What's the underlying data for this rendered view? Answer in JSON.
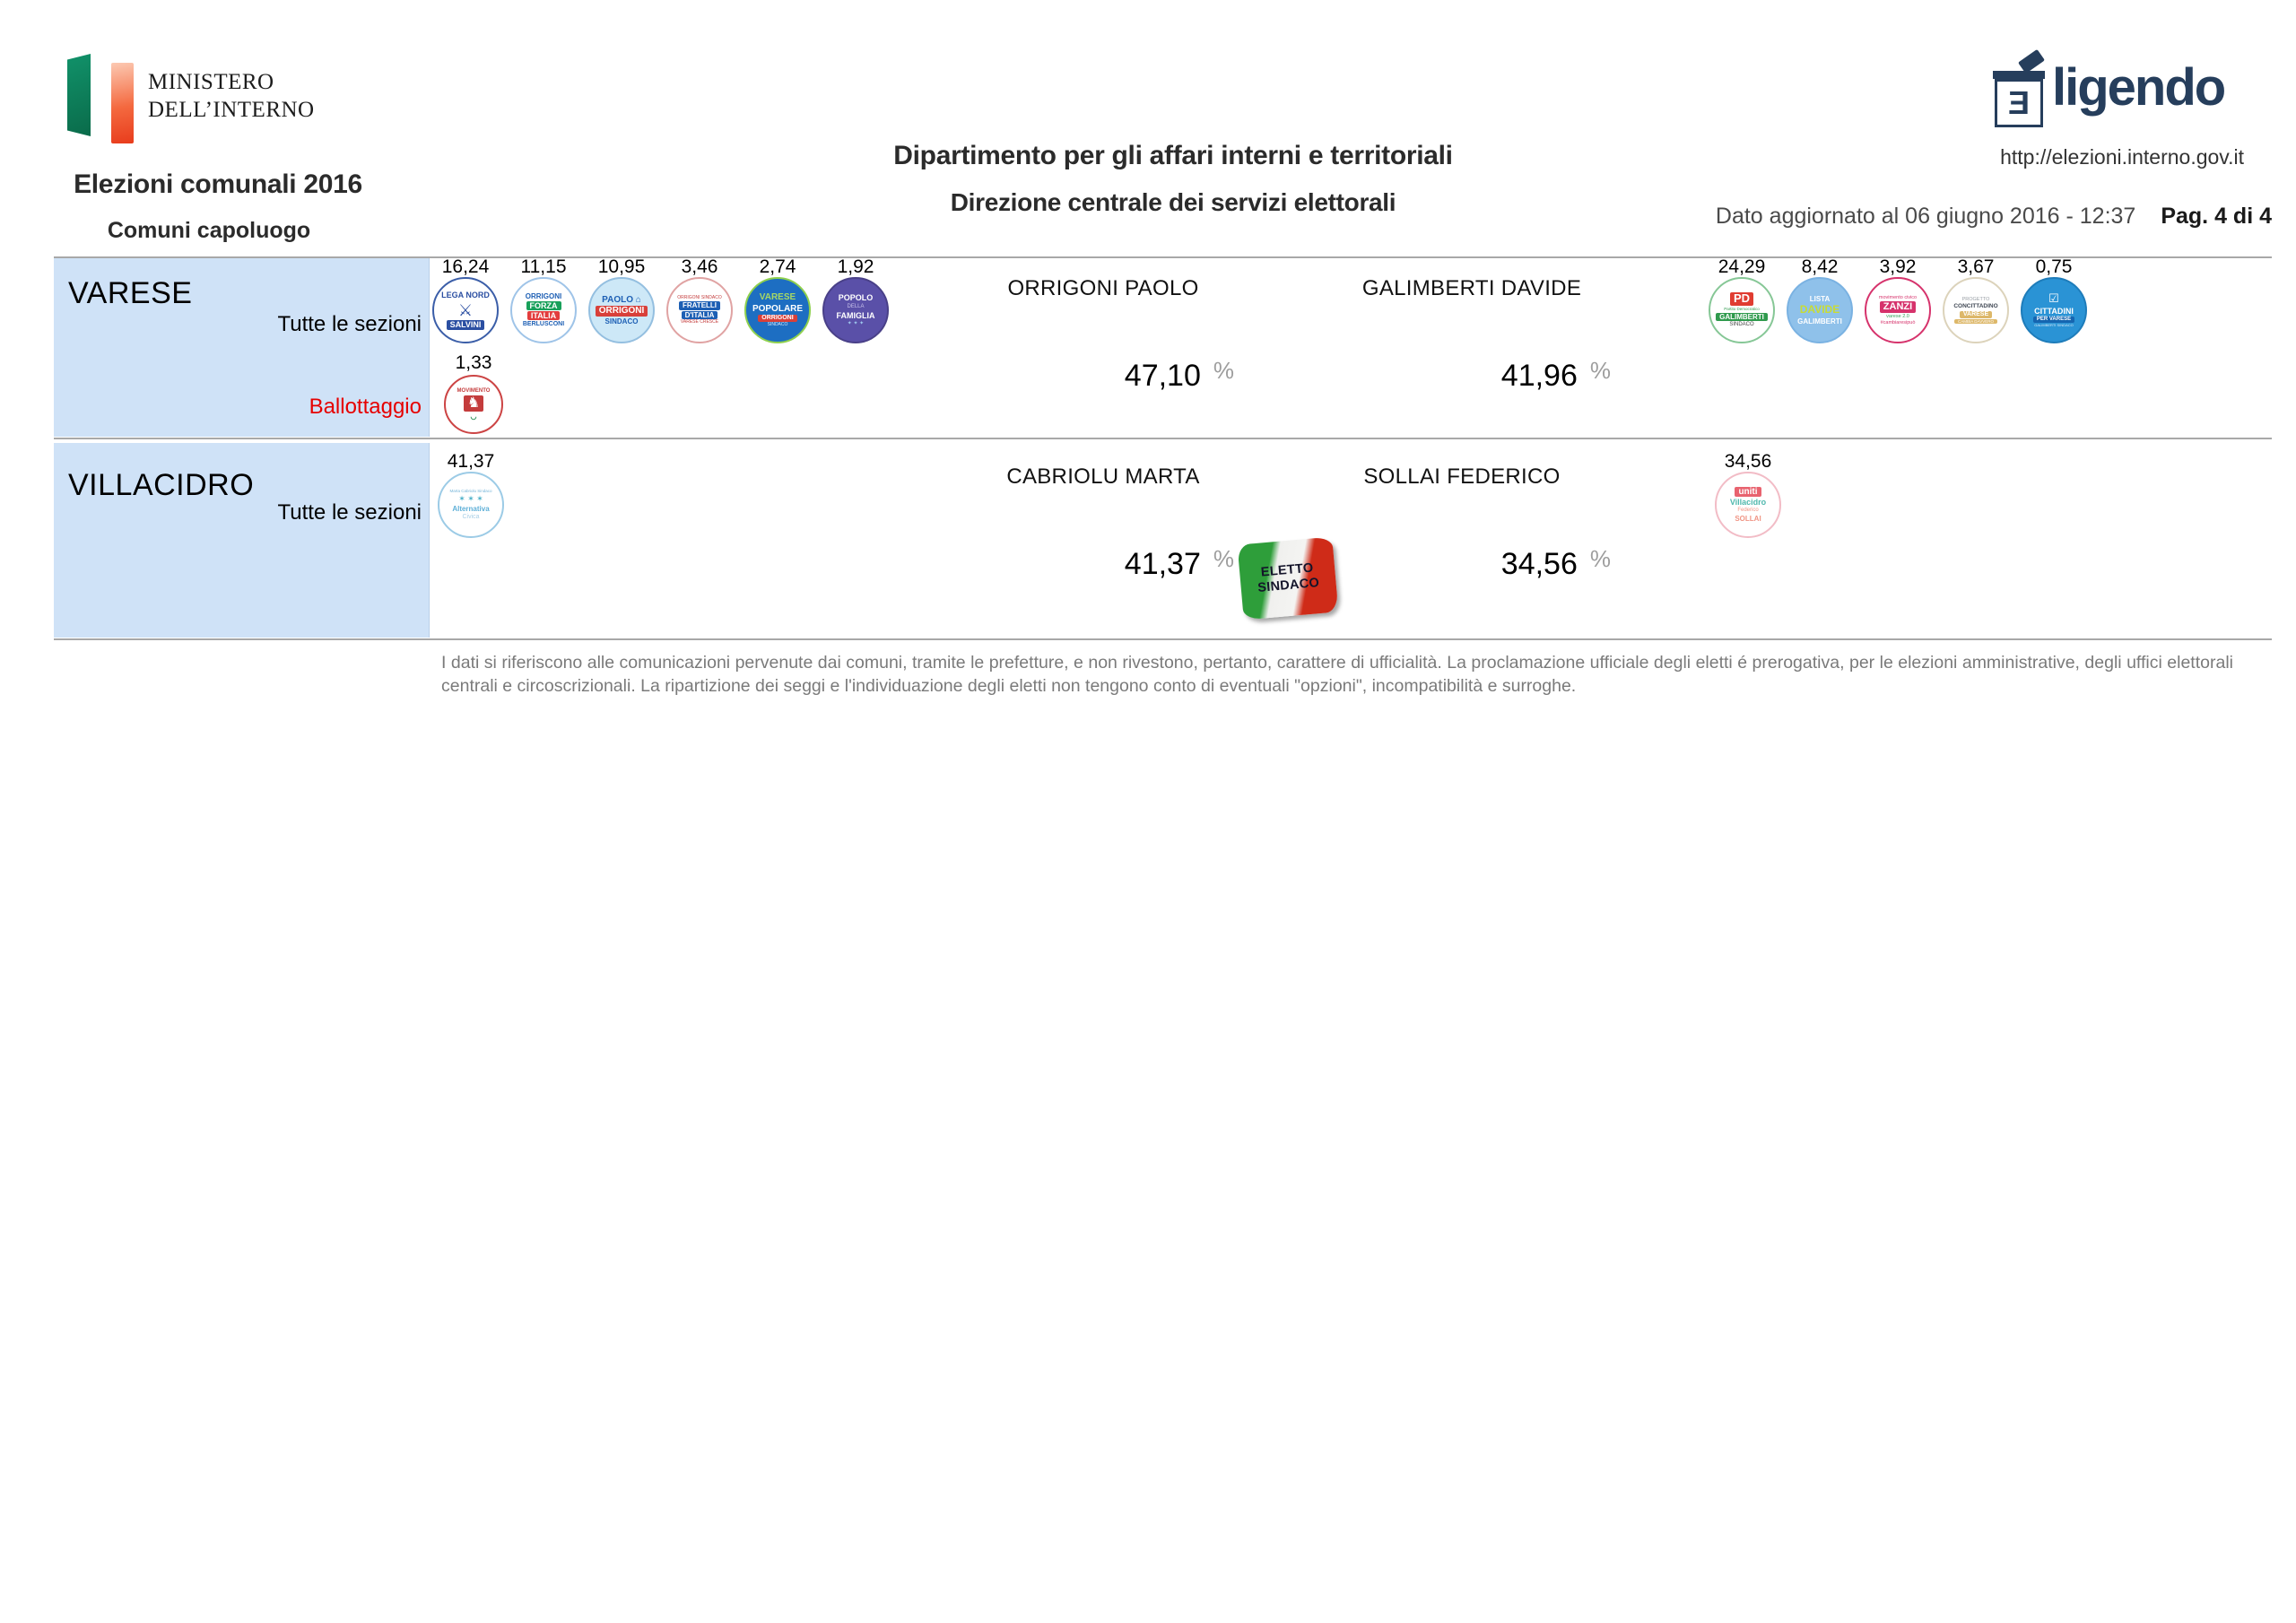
{
  "header": {
    "ministry_line1": "MINISTERO",
    "ministry_line2": "DELL’INTERNO",
    "election_title": "Elezioni comunali 2016",
    "election_subtitle": "Comuni capoluogo",
    "dept_line1": "Dipartimento per gli affari interni e territoriali",
    "dept_line2": "Direzione centrale dei servizi elettorali",
    "brand_icon_letter": "Ǝ",
    "brand_name": "ligendo",
    "site_url": "http://elezioni.interno.gov.it",
    "updated_text": "Dato aggiornato al 06 giugno 2016 - 12:37",
    "page_text": "Pag. 4 di 4"
  },
  "labels": {
    "percent": "%"
  },
  "rows": [
    {
      "municipality": "VARESE",
      "sections_label": "Tutte le sezioni",
      "ballot_label": "Ballottaggio",
      "candidates": [
        {
          "name": "ORRIGONI PAOLO",
          "pct": "47,10"
        },
        {
          "name": "GALIMBERTI DAVIDE",
          "pct": "41,96"
        }
      ],
      "lists_left": [
        {
          "pct": "16,24",
          "id": "lega-nord-salvini",
          "bg": "#ffffff",
          "border": "#3b5ea8",
          "lines": [
            {
              "t": "LEGA NORD",
              "c": "#2b4fa2",
              "fs": 9,
              "b": 1
            },
            {
              "t": "⚔",
              "c": "#2b4fa2",
              "fs": 18
            },
            {
              "t": "SALVINI",
              "c": "#ffffff",
              "bg": "#2b4fa2",
              "fs": 9,
              "b": 1
            }
          ]
        },
        {
          "pct": "11,15",
          "id": "forza-italia-berlusconi",
          "bg": "#ffffff",
          "border": "#9fc4e8",
          "lines": [
            {
              "t": "ORRIGONI",
              "c": "#1d5fb4",
              "fs": 8,
              "b": 1
            },
            {
              "t": "FORZA",
              "c": "#ffffff",
              "bg": "#18a05a",
              "fs": 9,
              "b": 1
            },
            {
              "t": "ITALIA",
              "c": "#ffffff",
              "bg": "#e23d3d",
              "fs": 9,
              "b": 1
            },
            {
              "t": "BERLUSCONI",
              "c": "#1d5fb4",
              "fs": 7,
              "b": 1
            }
          ]
        },
        {
          "pct": "10,95",
          "id": "paolo-orrigoni-sindaco",
          "bg": "#cde8f7",
          "border": "#94bfe0",
          "lines": [
            {
              "t": "PAOLO ⌂",
              "c": "#1d5fb4",
              "fs": 10,
              "b": 1
            },
            {
              "t": "ORRIGONI",
              "c": "#ffffff",
              "bg": "#d8403a",
              "fs": 10,
              "b": 1
            },
            {
              "t": "SINDACO",
              "c": "#1d5fb4",
              "fs": 8,
              "b": 1
            }
          ]
        },
        {
          "pct": "3,46",
          "id": "fratelli-d-italia",
          "bg": "#ffffff",
          "border": "#e0a3a3",
          "lines": [
            {
              "t": "ORRIGONI SINDACO",
              "c": "#c43c3c",
              "fs": 5
            },
            {
              "t": "FRATELLI",
              "c": "#ffffff",
              "bg": "#1d5fb4",
              "fs": 8,
              "b": 1
            },
            {
              "t": "D'ITALIA",
              "c": "#ffffff",
              "bg": "#1d5fb4",
              "fs": 8,
              "b": 1
            },
            {
              "t": "VARESE CRESCE",
              "c": "#c43c3c",
              "fs": 5
            }
          ]
        },
        {
          "pct": "2,74",
          "id": "varese-popolare-orrigoni",
          "bg": "#1d6ec2",
          "border": "#8fd04e",
          "lines": [
            {
              "t": "VARESE",
              "c": "#a8d864",
              "fs": 10,
              "b": 1
            },
            {
              "t": "POPOLARE",
              "c": "#ffffff",
              "fs": 10,
              "b": 1
            },
            {
              "t": "ORRIGONI",
              "c": "#ffffff",
              "bg": "#d8403a",
              "fs": 7,
              "b": 1
            },
            {
              "t": "SINDACO",
              "c": "#d6e9fa",
              "fs": 5
            }
          ]
        },
        {
          "pct": "1,92",
          "id": "popolo-della-famiglia",
          "bg": "#5a50a8",
          "border": "#494088",
          "lines": [
            {
              "t": "POPOLO",
              "c": "#ffffff",
              "fs": 9,
              "b": 1
            },
            {
              "t": "DELLA",
              "c": "#c9c3ec",
              "fs": 6
            },
            {
              "t": "FAMIGLIA",
              "c": "#ffffff",
              "fs": 9,
              "b": 1
            },
            {
              "t": "✦ ✦ ✦",
              "c": "#9ec8ee",
              "fs": 6
            }
          ]
        }
      ],
      "lists_left_row2": [
        {
          "pct": "1,33",
          "id": "movimento-cavallo",
          "bg": "#ffffff",
          "border": "#cc4444",
          "lines": [
            {
              "t": "MOVIMENTO",
              "c": "#c43c3c",
              "fs": 6,
              "b": 1
            },
            {
              "t": "♞",
              "c": "#ffffff",
              "bg": "#c43c3c",
              "fs": 16
            },
            {
              "t": "◡",
              "c": "#1b8a4c",
              "fs": 8,
              "b": 1
            }
          ]
        }
      ],
      "lists_right": [
        {
          "pct": "24,29",
          "id": "pd-galimberti-sindaco",
          "bg": "#ffffff",
          "border": "#86c796",
          "lines": [
            {
              "t": "PD",
              "c": "#ffffff",
              "bg": "#e03c31",
              "fs": 13,
              "b": 1
            },
            {
              "t": "Partito Democratico",
              "c": "#2f9a4d",
              "fs": 4.5
            },
            {
              "t": "GALIMBERTI",
              "c": "#ffffff",
              "bg": "#2f9a4d",
              "fs": 8,
              "b": 1
            },
            {
              "t": "SINDACO",
              "c": "#444444",
              "fs": 6
            }
          ]
        },
        {
          "pct": "8,42",
          "id": "lista-davide-galimberti",
          "bg": "#8fc1ea",
          "border": "#7ab2e2",
          "lines": [
            {
              "t": "LISTA",
              "c": "#ffffff",
              "fs": 8,
              "b": 1
            },
            {
              "t": "DAVIDE",
              "c": "#c8dc35",
              "fs": 12,
              "b": 1
            },
            {
              "t": "GALIMBERTI",
              "c": "#ffffff",
              "fs": 8,
              "b": 1
            }
          ]
        },
        {
          "pct": "3,92",
          "id": "movimento-civico-zanzi",
          "bg": "#ffffff",
          "border": "#d6336c",
          "lines": [
            {
              "t": "movimento civico",
              "c": "#d6336c",
              "fs": 5.5
            },
            {
              "t": "ZANZI",
              "c": "#ffffff",
              "bg": "#d6336c",
              "fs": 11,
              "b": 1
            },
            {
              "t": "varese 2.0",
              "c": "#3aa35c",
              "fs": 5.5
            },
            {
              "t": "#cambiaresipuò",
              "c": "#d6336c",
              "fs": 5.5
            }
          ]
        },
        {
          "pct": "3,67",
          "id": "progetto-concittadino",
          "bg": "#ffffff",
          "border": "#dcd3bb",
          "lines": [
            {
              "t": "PROGETTO",
              "c": "#9aa0a6",
              "fs": 5.5
            },
            {
              "t": "CONCITTADINO",
              "c": "#3f4753",
              "fs": 6.5,
              "b": 1
            },
            {
              "t": "VARESE",
              "c": "#ffffff",
              "bg": "#ddb86a",
              "fs": 7,
              "b": 1
            },
            {
              "t": "CAMBIA DAVVERO",
              "c": "#ffffff",
              "bg": "#ddb86a",
              "fs": 4.5
            }
          ]
        },
        {
          "pct": "0,75",
          "id": "cittadini-per-varese",
          "bg": "#2a93d5",
          "border": "#1e7cba",
          "lines": [
            {
              "t": "☑",
              "c": "#ffffff",
              "fs": 13
            },
            {
              "t": "CITTADINI",
              "c": "#ffffff",
              "fs": 9,
              "b": 1
            },
            {
              "t": "PER VARESE",
              "c": "#ffffff",
              "bg": "#1565b0",
              "fs": 6,
              "b": 1
            },
            {
              "t": "GALIMBERTI SINDACO",
              "c": "#d9ecf8",
              "fs": 4
            }
          ]
        }
      ]
    },
    {
      "municipality": "VILLACIDRO",
      "sections_label": "Tutte le sezioni",
      "candidates": [
        {
          "name": "CABRIOLU MARTA",
          "pct": "41,37",
          "elected_badge": "ELETTO\nSINDACO"
        },
        {
          "name": "SOLLAI FEDERICO",
          "pct": "34,56"
        }
      ],
      "lists_left": [
        {
          "pct": "41,37",
          "id": "alternativa-civica",
          "bg": "#ffffff",
          "border": "#9ccbe6",
          "lines": [
            {
              "t": "Marta Cabriolu Sindaco",
              "c": "#74b4d8",
              "fs": 4.5
            },
            {
              "t": "✶ ✶ ✶",
              "c": "#4ab0c8",
              "fs": 9
            },
            {
              "t": "Alternativa",
              "c": "#5fb0d8",
              "fs": 8,
              "b": 1
            },
            {
              "t": "Civica",
              "c": "#a9cfe6",
              "fs": 7
            }
          ]
        }
      ],
      "lists_right": [
        {
          "pct": "34,56",
          "id": "uniti-per-villacidro-sollai",
          "bg": "#ffffff",
          "border": "#f2bcc6",
          "lines": [
            {
              "t": "uniti",
              "c": "#ffffff",
              "bg": "#e8636f",
              "fs": 10,
              "b": 1
            },
            {
              "t": "Villacidro",
              "c": "#4fb8ad",
              "fs": 9,
              "b": 1
            },
            {
              "t": "Federico",
              "c": "#f09484",
              "fs": 6
            },
            {
              "t": "SOLLAI",
              "c": "#f09484",
              "fs": 8,
              "b": 1
            }
          ]
        }
      ]
    }
  ],
  "footer": {
    "disclaimer": "I dati si riferiscono alle comunicazioni pervenute dai comuni, tramite le prefetture, e non rivestono, pertanto, carattere di ufficialità. La proclamazione ufficiale degli eletti é prerogativa, per le elezioni amministrative, degli uffici elettorali centrali e circoscrizionali. La ripartizione dei seggi e l'individuazione degli eletti non tengono conto di eventuali \"opzioni\", incompatibilità e surroghe."
  }
}
